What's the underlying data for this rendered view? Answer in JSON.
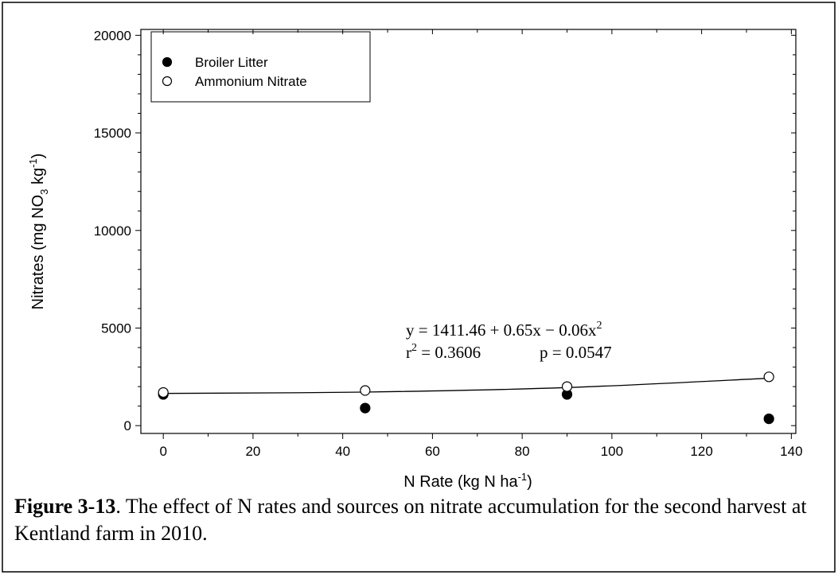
{
  "chart_data": {
    "type": "scatter",
    "xlabel_parts": [
      "N Rate (kg N ha",
      "-1",
      ")"
    ],
    "ylabel_parts": [
      "Nitrates (mg NO",
      "3",
      " kg",
      "-1",
      ")"
    ],
    "xlim": [
      -5,
      141
    ],
    "xticks": [
      0,
      20,
      40,
      60,
      80,
      100,
      120,
      140
    ],
    "xminorticks": [
      10,
      30,
      50,
      70,
      90,
      110,
      130
    ],
    "ylim": [
      -400,
      20300
    ],
    "yticks": [
      0,
      5000,
      10000,
      15000,
      20000
    ],
    "yminorticks": [
      1000,
      2000,
      3000,
      4000,
      6000,
      7000,
      8000,
      9000,
      11000,
      12000,
      13000,
      14000,
      16000,
      17000,
      18000,
      19000
    ],
    "x": [
      0,
      45,
      90,
      135
    ],
    "series": [
      {
        "name": "Broiler Litter",
        "color": "#000000",
        "values": [
          1600,
          900,
          1600,
          350
        ]
      },
      {
        "name": "Ammonium Nitrate",
        "color": "#ffffff",
        "values": [
          1700,
          1800,
          2000,
          2500
        ]
      }
    ],
    "fit": {
      "x": [
        0,
        45,
        90,
        135
      ],
      "values": [
        1650,
        1720,
        1950,
        2430
      ]
    },
    "equation": {
      "text": "y = 1411.46 + 0.65x − 0.06x",
      "sup": "2"
    },
    "stats": {
      "r": "r",
      "sup": "2",
      "r_text": " = 0.3606",
      "p_text": "p = 0.0547"
    },
    "legend": "upper left",
    "caption": {
      "label": "Figure 3-13",
      "text": ".  The effect of N rates and sources on nitrate accumulation for the second harvest at Kentland farm in 2010."
    }
  }
}
